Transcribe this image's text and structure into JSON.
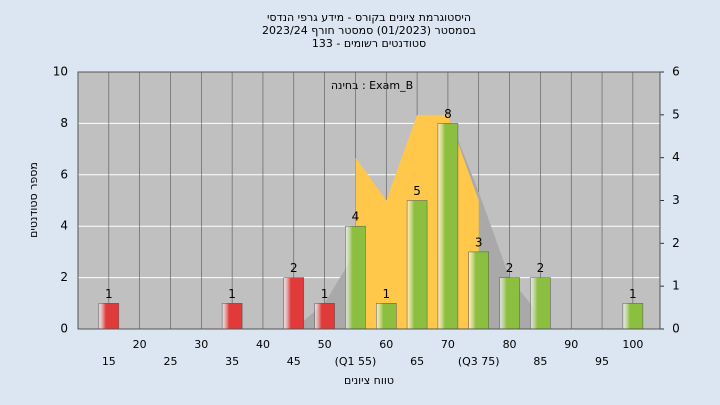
{
  "chart_data": {
    "type": "bar",
    "title": "היסטוגרמת ציונים בקורס - מידע גרפי הנדסי",
    "subtitle": "בסמסטר (01/2023) סמסטר חורף 2023/24",
    "subtitle2": "סטודנטים רשומים - 133",
    "annotation": "בחינה : Exam_B",
    "xlabel": "טווח ציונים",
    "ylabel": "מספר סטודנטים",
    "x": [
      15,
      20,
      25,
      30,
      35,
      40,
      45,
      50,
      55,
      60,
      65,
      70,
      75,
      80,
      85,
      90,
      95,
      100
    ],
    "x_labels": [
      "15",
      "20",
      "25",
      "30",
      "35",
      "40",
      "45",
      "50",
      "(Q1 55)",
      "60",
      "65",
      "70",
      "(Q3 75)",
      "80",
      "85",
      "90",
      "95",
      "100"
    ],
    "values": [
      1,
      0,
      0,
      0,
      1,
      0,
      2,
      1,
      4,
      1,
      5,
      8,
      3,
      2,
      2,
      0,
      0,
      1
    ],
    "colors": [
      "#e03a3a",
      "#8cbf3f",
      "#8cbf3f",
      "#8cbf3f",
      "#e03a3a",
      "#8cbf3f",
      "#e03a3a",
      "#e03a3a",
      "#8cbf3f",
      "#8cbf3f",
      "#8cbf3f",
      "#8cbf3f",
      "#8cbf3f",
      "#8cbf3f",
      "#8cbf3f",
      "#8cbf3f",
      "#8cbf3f",
      "#8cbf3f"
    ],
    "areas": [
      {
        "color": "#a9a9a9",
        "axis": "y2",
        "x": [
          45,
          50,
          55,
          60,
          65,
          70,
          75,
          80,
          85
        ],
        "values": [
          0,
          0.6,
          1.8,
          3.0,
          4.3,
          5.0,
          3.2,
          1.2,
          0.3
        ]
      },
      {
        "color": "#ffc84a",
        "axis": "y2",
        "x": [
          55,
          60,
          65,
          70,
          75
        ],
        "values": [
          4,
          3,
          5,
          5,
          3
        ]
      }
    ],
    "xlim": [
      10,
      104.4
    ],
    "ylim": [
      0,
      10
    ],
    "yticks": [
      0,
      2,
      4,
      6,
      8,
      10
    ],
    "y2lim": [
      0,
      6
    ],
    "y2ticks": [
      0,
      1,
      2,
      3,
      4,
      5,
      6
    ],
    "grid": true
  }
}
